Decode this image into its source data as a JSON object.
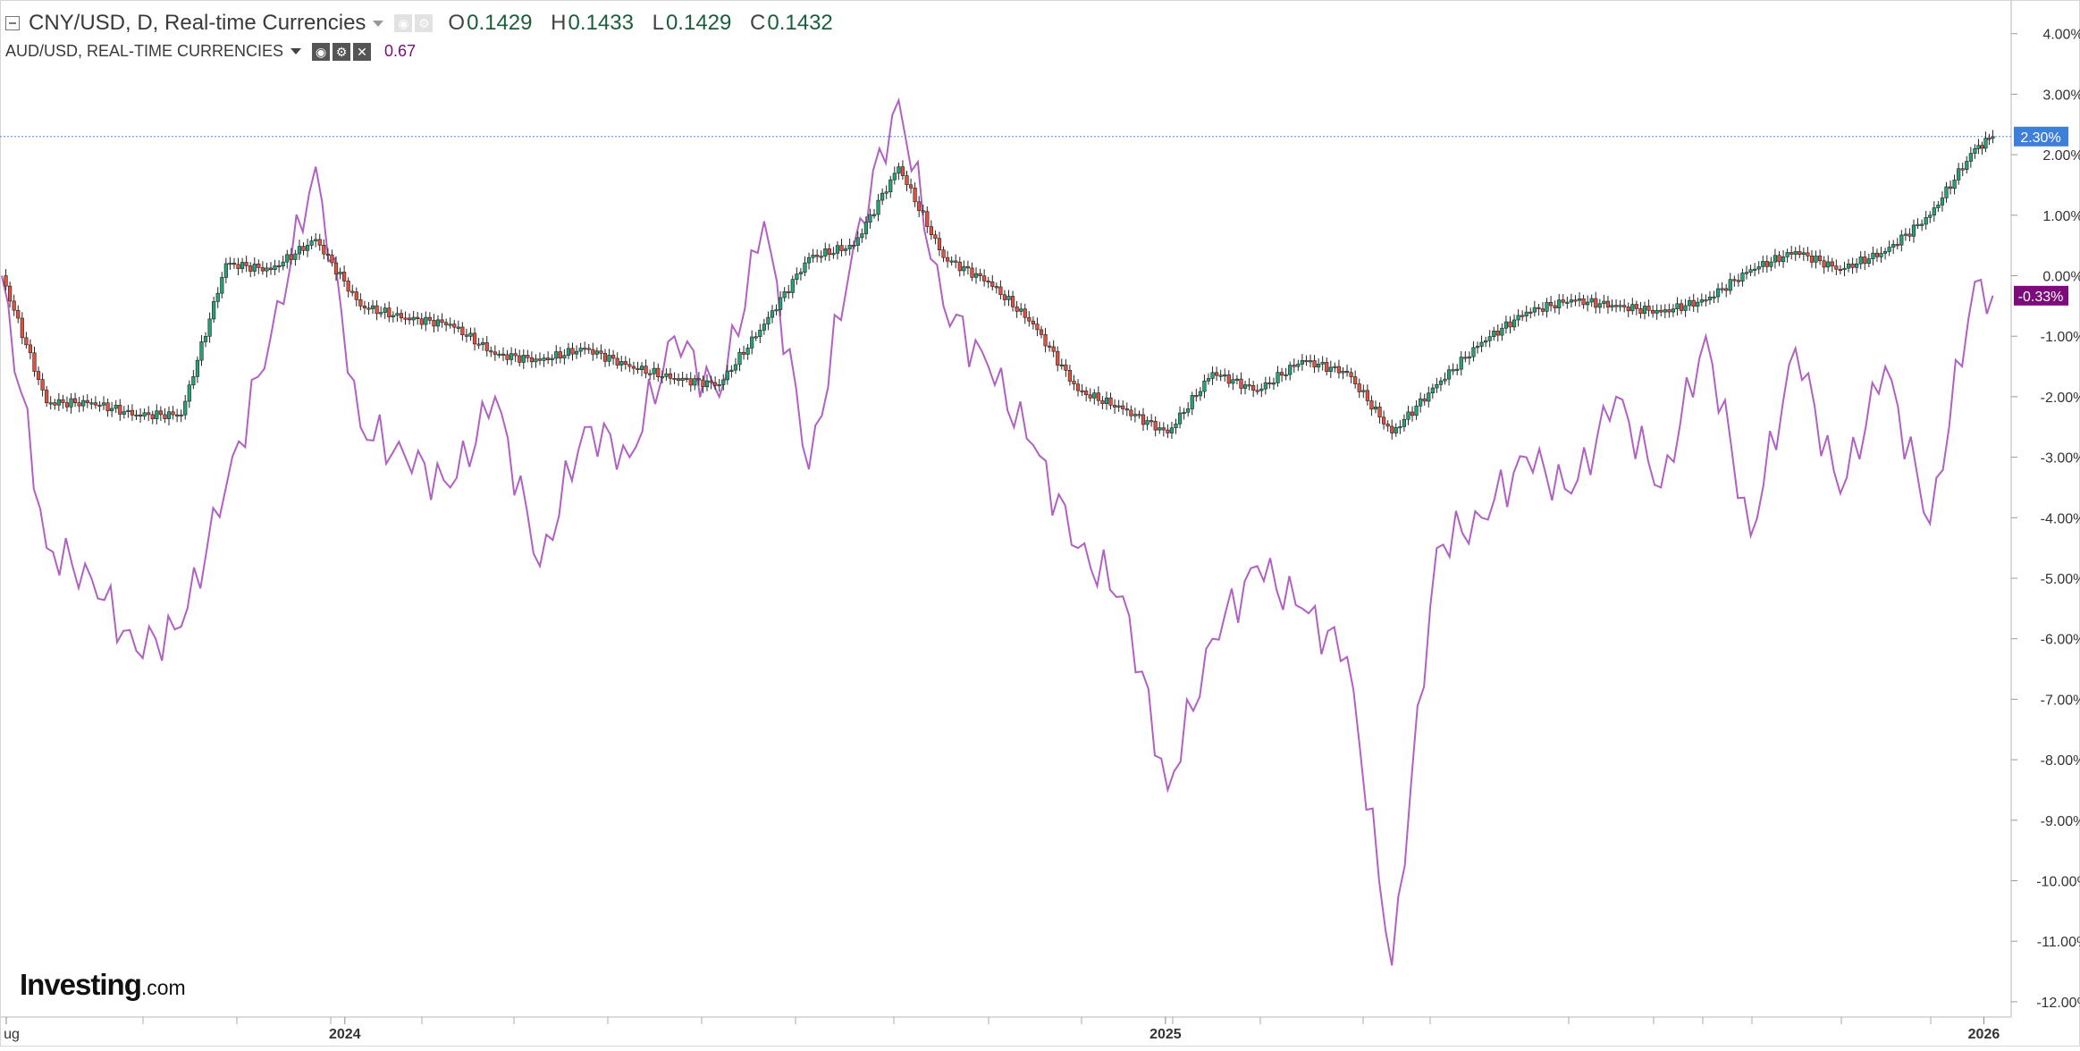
{
  "legend": {
    "main_symbol": "CNY/USD, D, Real-time Currencies",
    "open_label": "O",
    "open": "0.1429",
    "high_label": "H",
    "high": "0.1433",
    "low_label": "L",
    "low": "0.1429",
    "close_label": "C",
    "close": "0.1432",
    "compare_symbol": "AUD/USD, REAL-TIME CURRENCIES",
    "compare_value": "0.67"
  },
  "logo": {
    "brand": "Investing",
    "suffix": ".com"
  },
  "colors": {
    "up_candle": "#26a17a",
    "down_candle": "#e0513f",
    "compare_line": "#b061c1",
    "last_main_badge": "#3d7fd9",
    "last_compare_badge": "#7c0b7c",
    "price_line": "#5b8fd6",
    "grid_axis": "#cfcfcf"
  },
  "chart_data": [
    {
      "type": "candlestick",
      "name": "CNY/USD, D, Real-time Currencies",
      "y_unit": "percent change",
      "ylim": [
        -12.2,
        4.5
      ],
      "y_ticks": [
        "4.00%",
        "3.00%",
        "2.00%",
        "1.00%",
        "0.00%",
        "-1.00%",
        "-2.00%",
        "-3.00%",
        "-4.00%",
        "-5.00%",
        "-6.00%",
        "-7.00%",
        "-8.00%",
        "-9.00%",
        "-10.00%",
        "-11.00%",
        "-12.00%"
      ],
      "x_ticks": [
        "ug",
        "2024",
        "2025",
        "2026"
      ],
      "last_value_label": "2.30%",
      "x": [
        "2023-08-01",
        "2023-08-21",
        "2023-09-10",
        "2023-09-30",
        "2023-10-20",
        "2023-11-09",
        "2023-11-29",
        "2023-12-19",
        "2024-01-08",
        "2024-01-28",
        "2024-02-17",
        "2024-03-08",
        "2024-03-28",
        "2024-04-17",
        "2024-05-07",
        "2024-05-27",
        "2024-06-16",
        "2024-07-06",
        "2024-07-26",
        "2024-08-15",
        "2024-09-04",
        "2024-09-24",
        "2024-10-14",
        "2024-11-03",
        "2024-11-23",
        "2024-12-13",
        "2025-01-02",
        "2025-01-22",
        "2025-02-11",
        "2025-03-03",
        "2025-03-23",
        "2025-04-12",
        "2025-05-02",
        "2025-05-22",
        "2025-06-11",
        "2025-07-01",
        "2025-07-21",
        "2025-08-10",
        "2025-08-30",
        "2025-09-19",
        "2025-10-09",
        "2025-10-29",
        "2025-11-18",
        "2025-12-08",
        "2025-12-28",
        "2026-01-05"
      ],
      "values": [
        0.0,
        -2.1,
        -2.1,
        -2.3,
        -2.3,
        0.2,
        0.1,
        0.6,
        -0.5,
        -0.7,
        -0.8,
        -1.3,
        -1.4,
        -1.2,
        -1.5,
        -1.7,
        -1.8,
        -0.8,
        0.3,
        0.5,
        1.8,
        0.3,
        -0.1,
        -0.8,
        -1.9,
        -2.2,
        -2.6,
        -1.6,
        -1.9,
        -1.4,
        -1.6,
        -2.6,
        -1.8,
        -1.1,
        -0.6,
        -0.4,
        -0.5,
        -0.6,
        -0.4,
        0.1,
        0.4,
        0.1,
        0.4,
        1.0,
        2.1,
        2.3
      ]
    },
    {
      "type": "line",
      "name": "AUD/USD, REAL-TIME CURRENCIES",
      "y_unit": "percent change",
      "last_value_label": "-0.33%",
      "x": [
        "2023-08-01",
        "2023-08-21",
        "2023-09-10",
        "2023-09-30",
        "2023-10-20",
        "2023-11-09",
        "2023-11-29",
        "2023-12-19",
        "2024-01-08",
        "2024-01-28",
        "2024-02-17",
        "2024-03-08",
        "2024-03-28",
        "2024-04-17",
        "2024-05-07",
        "2024-05-27",
        "2024-06-16",
        "2024-07-06",
        "2024-07-26",
        "2024-08-15",
        "2024-09-04",
        "2024-09-24",
        "2024-10-14",
        "2024-11-03",
        "2024-11-23",
        "2024-12-13",
        "2025-01-02",
        "2025-01-22",
        "2025-02-11",
        "2025-03-03",
        "2025-03-23",
        "2025-04-12",
        "2025-05-02",
        "2025-05-22",
        "2025-06-11",
        "2025-07-01",
        "2025-07-21",
        "2025-08-10",
        "2025-08-30",
        "2025-09-19",
        "2025-10-09",
        "2025-10-29",
        "2025-11-18",
        "2025-12-08",
        "2025-12-28",
        "2026-01-05"
      ],
      "values": [
        0.0,
        -4.5,
        -5.0,
        -6.2,
        -5.8,
        -3.5,
        -1.0,
        1.8,
        -2.5,
        -3.0,
        -3.5,
        -2.0,
        -4.8,
        -2.5,
        -3.0,
        -1.0,
        -2.0,
        0.9,
        -3.2,
        0.5,
        2.9,
        -0.5,
        -1.5,
        -2.8,
        -4.5,
        -5.3,
        -8.5,
        -6.0,
        -4.8,
        -5.5,
        -6.3,
        -11.4,
        -4.5,
        -4.0,
        -3.0,
        -3.6,
        -2.0,
        -3.5,
        -1.0,
        -4.3,
        -1.2,
        -3.6,
        -1.5,
        -4.1,
        -0.1,
        -0.33
      ]
    }
  ]
}
